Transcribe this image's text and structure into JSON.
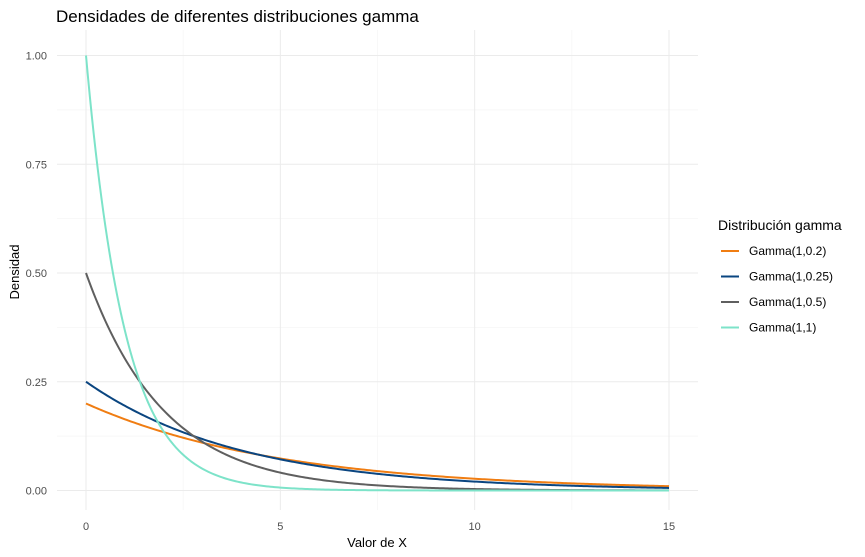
{
  "chart_data": {
    "type": "line",
    "title": "Densidades de diferentes distribuciones gamma",
    "xlabel": "Valor de X",
    "ylabel": "Densidad",
    "xlim": [
      0,
      15
    ],
    "ylim": [
      0,
      1
    ],
    "x_ticks": [
      0,
      5,
      10,
      15
    ],
    "x_tick_labels": [
      "0",
      "5",
      "10",
      "15"
    ],
    "y_ticks": [
      0,
      0.25,
      0.5,
      0.75,
      1.0
    ],
    "y_tick_labels": [
      "0.00",
      "0.25",
      "0.50",
      "0.75",
      "1.00"
    ],
    "grid": true,
    "legend": {
      "title": "Distribución gamma",
      "position": "right"
    },
    "x": [
      0,
      0.5,
      1,
      1.5,
      2,
      2.5,
      3,
      3.5,
      4,
      4.5,
      5,
      5.5,
      6,
      6.5,
      7,
      7.5,
      8,
      8.5,
      9,
      9.5,
      10,
      10.5,
      11,
      11.5,
      12,
      12.5,
      13,
      13.5,
      14,
      14.5,
      15
    ],
    "series": [
      {
        "name": "Gamma(1,0.2)",
        "color": "#f07d12",
        "values": [
          0.2,
          0.181,
          0.164,
          0.148,
          0.134,
          0.121,
          0.11,
          0.099,
          0.09,
          0.081,
          0.074,
          0.067,
          0.06,
          0.054,
          0.049,
          0.045,
          0.04,
          0.037,
          0.033,
          0.03,
          0.027,
          0.024,
          0.022,
          0.02,
          0.018,
          0.016,
          0.015,
          0.013,
          0.012,
          0.011,
          0.01
        ]
      },
      {
        "name": "Gamma(1,0.25)",
        "color": "#0a4580",
        "values": [
          0.25,
          0.221,
          0.195,
          0.172,
          0.152,
          0.134,
          0.118,
          0.104,
          0.092,
          0.081,
          0.072,
          0.063,
          0.056,
          0.049,
          0.043,
          0.038,
          0.034,
          0.03,
          0.026,
          0.023,
          0.021,
          0.018,
          0.016,
          0.014,
          0.012,
          0.011,
          0.01,
          0.009,
          0.008,
          0.007,
          0.006
        ]
      },
      {
        "name": "Gamma(1,0.5)",
        "color": "#5f5f5f",
        "values": [
          0.5,
          0.389,
          0.303,
          0.236,
          0.184,
          0.143,
          0.112,
          0.087,
          0.068,
          0.053,
          0.041,
          0.032,
          0.025,
          0.019,
          0.015,
          0.012,
          0.009,
          0.007,
          0.006,
          0.004,
          0.003,
          0.003,
          0.002,
          0.002,
          0.001,
          0.001,
          0.001,
          0.001,
          0.0,
          0.0,
          0.0
        ]
      },
      {
        "name": "Gamma(1,1)",
        "color": "#7de3c9",
        "values": [
          1.0,
          0.607,
          0.368,
          0.223,
          0.135,
          0.082,
          0.05,
          0.03,
          0.018,
          0.011,
          0.007,
          0.004,
          0.002,
          0.002,
          0.001,
          0.001,
          0.0,
          0.0,
          0.0,
          0.0,
          0.0,
          0.0,
          0.0,
          0.0,
          0.0,
          0.0,
          0.0,
          0.0,
          0.0,
          0.0,
          0.0
        ]
      }
    ]
  }
}
